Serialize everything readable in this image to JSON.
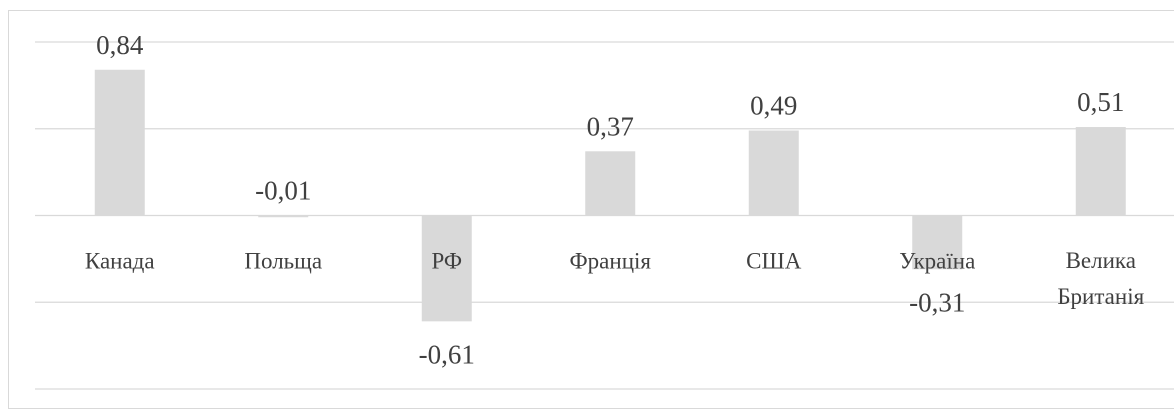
{
  "chart_data": {
    "type": "bar",
    "categories": [
      "Канада",
      "Польща",
      "РФ",
      "Франція",
      "США",
      "Україна",
      "Велика Британія"
    ],
    "values": [
      0.84,
      -0.01,
      -0.61,
      0.37,
      0.49,
      -0.31,
      0.51
    ],
    "value_labels": [
      "0,84",
      "-0,01",
      "-0,61",
      "0,37",
      "0,49",
      "-0,31",
      "0,51"
    ],
    "color": "#d9d9d9",
    "ylim": [
      -1,
      1
    ],
    "yticks": [
      -1,
      -0.5,
      0,
      0.5,
      1
    ],
    "grid": true
  }
}
